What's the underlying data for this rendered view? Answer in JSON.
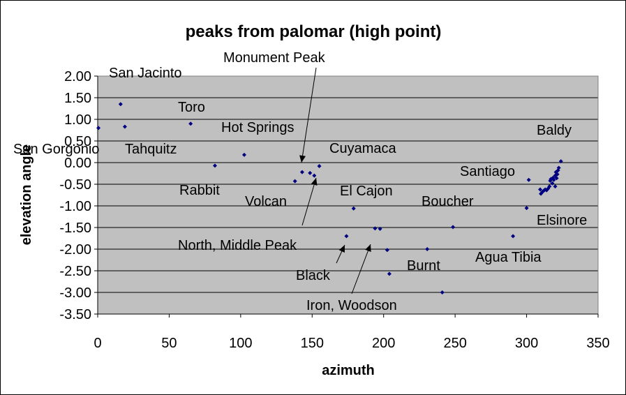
{
  "chart_data": {
    "type": "scatter",
    "title": "peaks from palomar (high point)",
    "xlabel": "azimuth",
    "ylabel": "elevation angle",
    "xlim": [
      0,
      350
    ],
    "ylim": [
      -3.5,
      2.0
    ],
    "x_ticks": [
      "0",
      "50",
      "100",
      "150",
      "200",
      "250",
      "300",
      "350"
    ],
    "y_ticks": [
      "2.00",
      "1.50",
      "1.00",
      "0.50",
      "0.00",
      "-0.50",
      "-1.00",
      "-1.50",
      "-2.00",
      "-2.50",
      "-3.00",
      "-3.50"
    ],
    "grid": "horizontal",
    "plot_background": "#c0c0c0",
    "marker_color": "#000080",
    "points": [
      {
        "x": 0.5,
        "y": 0.8
      },
      {
        "x": 16,
        "y": 1.35
      },
      {
        "x": 19,
        "y": 0.83
      },
      {
        "x": 65,
        "y": 0.9
      },
      {
        "x": 82,
        "y": -0.07
      },
      {
        "x": 102.5,
        "y": 0.18
      },
      {
        "x": 138,
        "y": -0.43
      },
      {
        "x": 143,
        "y": -0.22
      },
      {
        "x": 148.5,
        "y": -0.24
      },
      {
        "x": 151.5,
        "y": -0.3
      },
      {
        "x": 155,
        "y": -0.08
      },
      {
        "x": 179,
        "y": -1.06
      },
      {
        "x": 174,
        "y": -1.7
      },
      {
        "x": 194,
        "y": -1.52
      },
      {
        "x": 197.5,
        "y": -1.53
      },
      {
        "x": 202.5,
        "y": -2.02
      },
      {
        "x": 204,
        "y": -2.57
      },
      {
        "x": 230.5,
        "y": -2.0
      },
      {
        "x": 241,
        "y": -3.0
      },
      {
        "x": 248.5,
        "y": -1.49
      },
      {
        "x": 290.5,
        "y": -1.7
      },
      {
        "x": 300,
        "y": -1.05
      },
      {
        "x": 301.5,
        "y": -0.4
      },
      {
        "x": 309.5,
        "y": -0.62
      },
      {
        "x": 310,
        "y": -0.72
      },
      {
        "x": 311,
        "y": -0.68
      },
      {
        "x": 312,
        "y": -0.65
      },
      {
        "x": 313,
        "y": -0.62
      },
      {
        "x": 314,
        "y": -0.64
      },
      {
        "x": 315,
        "y": -0.6
      },
      {
        "x": 316,
        "y": -0.55
      },
      {
        "x": 316.5,
        "y": -0.42
      },
      {
        "x": 317,
        "y": -0.38
      },
      {
        "x": 318,
        "y": -0.48
      },
      {
        "x": 318.5,
        "y": -0.35
      },
      {
        "x": 319,
        "y": -0.4
      },
      {
        "x": 320,
        "y": -0.55
      },
      {
        "x": 320,
        "y": -0.3
      },
      {
        "x": 320.5,
        "y": -0.22
      },
      {
        "x": 321,
        "y": -0.36
      },
      {
        "x": 321.5,
        "y": -0.27
      },
      {
        "x": 322,
        "y": -0.18
      },
      {
        "x": 322.5,
        "y": -0.12
      },
      {
        "x": 324,
        "y": 0.03
      }
    ],
    "annotations": [
      {
        "text": "San Jacinto"
      },
      {
        "text": "Toro"
      },
      {
        "text": "Hot Springs"
      },
      {
        "text": "San Gorgonio"
      },
      {
        "text": "Tahquitz"
      },
      {
        "text": "Monument Peak"
      },
      {
        "text": "Cuyamaca"
      },
      {
        "text": "Rabbit"
      },
      {
        "text": "Volcan"
      },
      {
        "text": "El Cajon"
      },
      {
        "text": "Boucher"
      },
      {
        "text": "Baldy"
      },
      {
        "text": "Santiago"
      },
      {
        "text": "Elsinore"
      },
      {
        "text": "North, Middle Peak"
      },
      {
        "text": "Black"
      },
      {
        "text": "Burnt"
      },
      {
        "text": "Agua Tibia"
      },
      {
        "text": "Iron, Woodson"
      }
    ]
  }
}
